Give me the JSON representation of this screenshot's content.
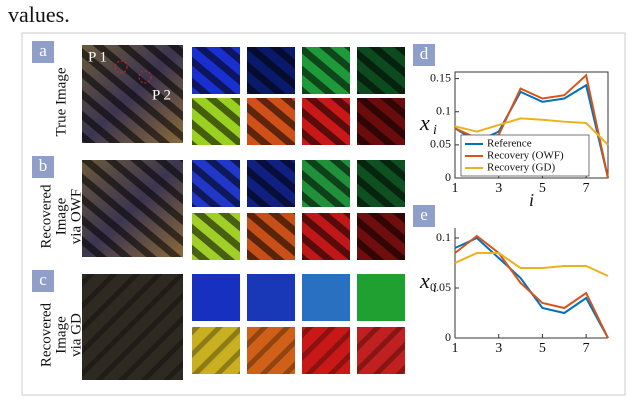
{
  "text": "values.",
  "panels": [
    {
      "label": "a",
      "row_label": [
        "True Image"
      ],
      "points": [
        "P 1",
        "P 2"
      ]
    },
    {
      "label": "b",
      "row_label": [
        "Recovered",
        "Image",
        "via OWF"
      ]
    },
    {
      "label": "c",
      "row_label": [
        "Recovered",
        "Image",
        "via GD"
      ]
    }
  ],
  "chart_data": [
    {
      "type": "line",
      "label": "d",
      "xlabel": "i",
      "ylabel": "x",
      "ylabel_sub": "i",
      "x": [
        1,
        2,
        3,
        4,
        5,
        6,
        7,
        8
      ],
      "xlim": [
        1,
        8
      ],
      "xticks": [
        1,
        3,
        5,
        7
      ],
      "ylim": [
        0,
        0.16
      ],
      "yticks": [
        0,
        0.05,
        0.1,
        0.15
      ],
      "box": true,
      "legend": "lower left",
      "series": [
        {
          "name": "Reference",
          "color": "#0072bd",
          "values": [
            0.075,
            0.055,
            0.07,
            0.13,
            0.115,
            0.12,
            0.14,
            0
          ]
        },
        {
          "name": "Recovery (OWF)",
          "color": "#d95319",
          "values": [
            0.075,
            0.06,
            0.065,
            0.135,
            0.12,
            0.125,
            0.155,
            0
          ]
        },
        {
          "name": "Recovery (GD)",
          "color": "#edb120",
          "values": [
            0.078,
            0.07,
            0.08,
            0.09,
            0.088,
            0.085,
            0.083,
            0.05
          ]
        }
      ]
    },
    {
      "type": "line",
      "label": "e",
      "ylabel": "x",
      "ylabel_sub": "i",
      "x": [
        1,
        2,
        3,
        4,
        5,
        6,
        7,
        8
      ],
      "xlim": [
        1,
        8
      ],
      "xticks": [
        1,
        3,
        5,
        7
      ],
      "ylim": [
        0,
        0.11
      ],
      "yticks": [
        0,
        0.05,
        0.1
      ],
      "box": false,
      "series": [
        {
          "color": "#0072bd",
          "values": [
            0.09,
            0.1,
            0.08,
            0.06,
            0.03,
            0.025,
            0.04,
            0
          ]
        },
        {
          "color": "#d95319",
          "values": [
            0.085,
            0.102,
            0.085,
            0.055,
            0.035,
            0.03,
            0.045,
            0
          ]
        },
        {
          "color": "#edb120",
          "values": [
            0.075,
            0.085,
            0.085,
            0.07,
            0.07,
            0.072,
            0.072,
            0.062
          ]
        }
      ]
    }
  ]
}
